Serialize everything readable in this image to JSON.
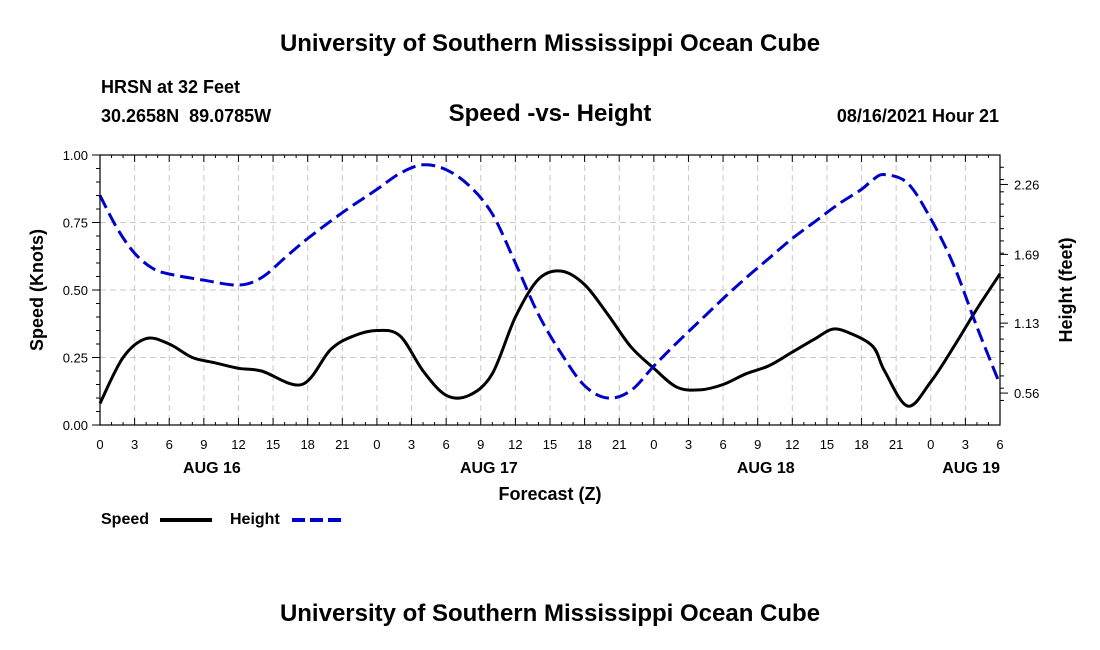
{
  "page": {
    "title_top": "University of Southern Mississippi Ocean Cube",
    "title_bottom": "University of Southern Mississippi Ocean Cube",
    "station_label": "HRSN at 32 Feet",
    "coordinates": "30.2658N  89.0785W",
    "chart_title": "Speed -vs- Height",
    "timestamp": "08/16/2021 Hour 21"
  },
  "chart_data": {
    "type": "line",
    "title": "Speed -vs- Height",
    "xlabel": "Forecast (Z)",
    "ylabel": "Speed (Knots)",
    "y2label": "Height (feet)",
    "x_range_hours": [
      0,
      78
    ],
    "ylim": [
      0,
      1.0
    ],
    "y2lim": [
      0.3,
      2.5
    ],
    "x_ticks": [
      "0",
      "3",
      "6",
      "9",
      "12",
      "15",
      "18",
      "21",
      "0",
      "3",
      "6",
      "9",
      "12",
      "15",
      "18",
      "21",
      "0",
      "3",
      "6",
      "9",
      "12",
      "15",
      "18",
      "21",
      "0",
      "3",
      "6"
    ],
    "y_ticks": [
      "0.00",
      "0.25",
      "0.50",
      "0.75",
      "1.00"
    ],
    "y2_ticks": [
      "0.56",
      "1.13",
      "1.69",
      "2.26"
    ],
    "date_labels": [
      {
        "text": "AUG 16",
        "hour": 9.7
      },
      {
        "text": "AUG 17",
        "hour": 33.7
      },
      {
        "text": "AUG 18",
        "hour": 57.7
      },
      {
        "text": "AUG 19",
        "hour": 75.5
      }
    ],
    "grid": true,
    "legend": [
      {
        "name": "Speed",
        "color": "#000000",
        "style": "solid"
      },
      {
        "name": "Height",
        "color": "#0000cc",
        "style": "dashed"
      }
    ],
    "series": [
      {
        "name": "Speed",
        "axis": "left",
        "color": "#000000",
        "x": [
          0,
          2,
          4,
          6,
          8,
          10,
          12,
          14,
          17.5,
          20,
          22,
          24,
          26,
          28,
          30,
          32,
          34,
          36,
          38,
          40,
          42,
          44,
          46,
          48,
          50,
          52,
          54,
          56,
          58,
          60,
          62,
          63.5,
          65,
          67,
          68,
          70,
          72,
          74,
          76,
          78
        ],
        "y": [
          0.08,
          0.25,
          0.32,
          0.3,
          0.25,
          0.23,
          0.21,
          0.2,
          0.15,
          0.28,
          0.33,
          0.35,
          0.33,
          0.2,
          0.11,
          0.11,
          0.19,
          0.4,
          0.54,
          0.57,
          0.52,
          0.41,
          0.29,
          0.21,
          0.14,
          0.13,
          0.15,
          0.19,
          0.22,
          0.27,
          0.32,
          0.355,
          0.34,
          0.29,
          0.2,
          0.07,
          0.16,
          0.29,
          0.43,
          0.56
        ]
      },
      {
        "name": "Height",
        "axis": "right",
        "color": "#0000cc",
        "x": [
          0,
          1.5,
          3,
          4.5,
          6,
          9,
          12,
          14,
          16,
          18,
          21,
          24,
          26,
          28,
          30,
          32,
          34,
          36,
          38,
          40,
          42,
          44,
          46,
          48,
          50,
          52,
          54,
          56,
          58,
          60,
          62,
          64,
          66,
          67,
          68,
          70,
          72,
          74,
          76,
          78
        ],
        "y": [
          2.17,
          1.9,
          1.7,
          1.58,
          1.53,
          1.48,
          1.44,
          1.5,
          1.66,
          1.82,
          2.03,
          2.22,
          2.35,
          2.42,
          2.38,
          2.25,
          2.02,
          1.62,
          1.2,
          0.88,
          0.62,
          0.52,
          0.58,
          0.78,
          0.97,
          1.15,
          1.33,
          1.5,
          1.66,
          1.82,
          1.96,
          2.1,
          2.22,
          2.3,
          2.34,
          2.27,
          1.98,
          1.6,
          1.1,
          0.63
        ]
      }
    ]
  }
}
